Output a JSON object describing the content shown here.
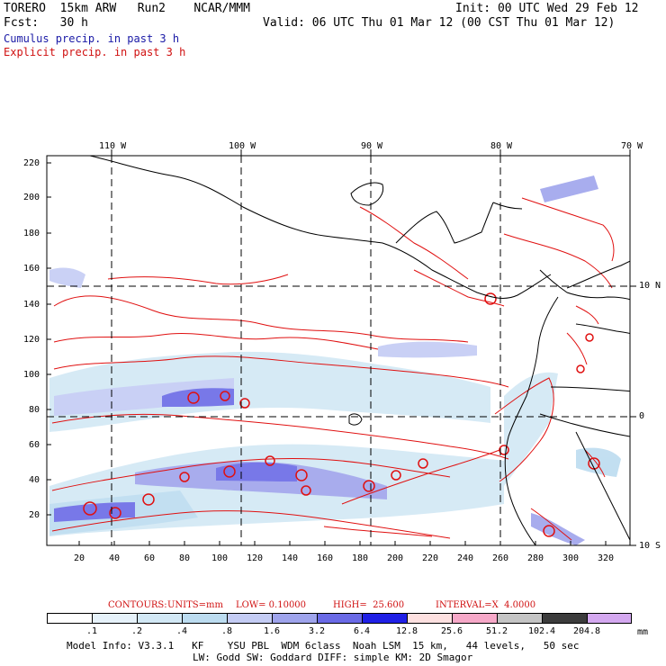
{
  "header": {
    "model": "TORERO  15km ARW   Run2    NCAR/MMM",
    "init": "Init: 00 UTC Wed 29 Feb 12",
    "fcst": "Fcst:   30 h",
    "valid": "Valid: 06 UTC Thu 01 Mar 12 (00 CST Thu 01 Mar 12)",
    "cumulus": "Cumulus precip. in past 3 h",
    "explicit": "Explicit precip. in past 3 h"
  },
  "map": {
    "top_lon_labels": [
      "110 W",
      "100 W",
      "90 W",
      "80 W",
      "70 W"
    ],
    "right_lat_labels": [
      "10 N",
      "0",
      "10 S"
    ],
    "y_ticks": [
      "220",
      "200",
      "180",
      "160",
      "140",
      "120",
      "100",
      "80",
      "60",
      "40",
      "20"
    ],
    "x_ticks": [
      "20",
      "40",
      "60",
      "80",
      "100",
      "120",
      "140",
      "160",
      "180",
      "200",
      "220",
      "240",
      "260",
      "280",
      "300",
      "320"
    ]
  },
  "contour_info": {
    "label": "CONTOURS:",
    "units": "UNITS=mm",
    "low": "LOW= 0.10000",
    "high": "HIGH=  25.600",
    "interval": "INTERVAL=X  4.0000"
  },
  "colorbar": {
    "unit": "mm",
    "labels": [
      ".1",
      ".2",
      ".4",
      ".8",
      "1.6",
      "3.2",
      "6.4",
      "12.8",
      "25.6",
      "51.2",
      "102.4",
      "204.8"
    ],
    "colors": [
      "#ffffff",
      "#e6f2fa",
      "#d2e8f5",
      "#bcdcf0",
      "#c4ccf4",
      "#9fa4ec",
      "#6a6ae6",
      "#2020e6",
      "#fde0e0",
      "#f6a8c8",
      "#c4c4c4",
      "#3c3c3c",
      "#d4a8f0"
    ]
  },
  "footer": {
    "line1": "Model Info: V3.3.1   KF    YSU PBL  WDM 6class  Noah LSM  15 km,   44 levels,   50 sec",
    "line2": "LW: Godd SW: Goddard DIFF: simple KM: 2D Smagor"
  }
}
